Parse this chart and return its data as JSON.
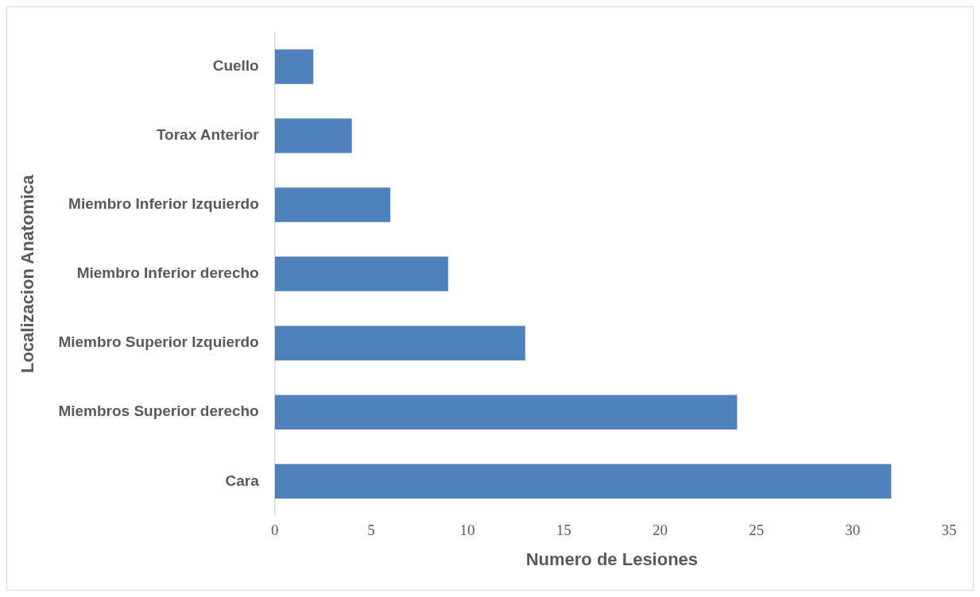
{
  "chart_data": {
    "type": "bar",
    "orientation": "horizontal",
    "xlabel": "Numero de Lesiones",
    "ylabel": "Localizacion Anatomica",
    "categories": [
      "Cuello",
      "Torax Anterior",
      "Miembro Inferior Izquierdo",
      "Miembro Inferior derecho",
      "Miembro Superior Izquierdo",
      "Miembros Superior derecho",
      "Cara"
    ],
    "values": [
      2,
      4,
      6,
      9,
      13,
      24,
      32
    ],
    "color": "#4f81bd",
    "xlim": [
      0,
      35
    ],
    "xticks": [
      0,
      5,
      10,
      15,
      20,
      25,
      30,
      35
    ]
  }
}
